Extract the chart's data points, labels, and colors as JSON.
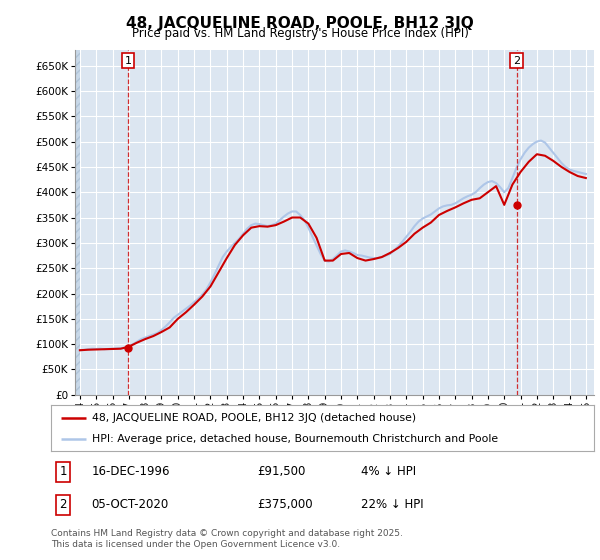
{
  "title": "48, JACQUELINE ROAD, POOLE, BH12 3JQ",
  "subtitle": "Price paid vs. HM Land Registry's House Price Index (HPI)",
  "legend_line1": "48, JACQUELINE ROAD, POOLE, BH12 3JQ (detached house)",
  "legend_line2": "HPI: Average price, detached house, Bournemouth Christchurch and Poole",
  "annotation1_date": "16-DEC-1996",
  "annotation1_price": "£91,500",
  "annotation1_hpi": "4% ↓ HPI",
  "annotation2_date": "05-OCT-2020",
  "annotation2_price": "£375,000",
  "annotation2_hpi": "22% ↓ HPI",
  "footer": "Contains HM Land Registry data © Crown copyright and database right 2025.\nThis data is licensed under the Open Government Licence v3.0.",
  "ylim": [
    0,
    680000
  ],
  "ytick_step": 50000,
  "background_color": "#ffffff",
  "plot_bg_color": "#dce6f1",
  "hatch_color": "#c8d8e8",
  "grid_color": "#ffffff",
  "hpi_color": "#aec6e8",
  "price_color": "#cc0000",
  "marker_color": "#cc0000",
  "hpi_linewidth": 1.5,
  "price_linewidth": 1.5,
  "sale1_year": 1996.96,
  "sale1_price": 91500,
  "sale2_year": 2020.76,
  "sale2_price": 375000,
  "hpi_years": [
    1994.0,
    1994.25,
    1994.5,
    1994.75,
    1995.0,
    1995.25,
    1995.5,
    1995.75,
    1996.0,
    1996.25,
    1996.5,
    1996.75,
    1997.0,
    1997.25,
    1997.5,
    1997.75,
    1998.0,
    1998.25,
    1998.5,
    1998.75,
    1999.0,
    1999.25,
    1999.5,
    1999.75,
    2000.0,
    2000.25,
    2000.5,
    2000.75,
    2001.0,
    2001.25,
    2001.5,
    2001.75,
    2002.0,
    2002.25,
    2002.5,
    2002.75,
    2003.0,
    2003.25,
    2003.5,
    2003.75,
    2004.0,
    2004.25,
    2004.5,
    2004.75,
    2005.0,
    2005.25,
    2005.5,
    2005.75,
    2006.0,
    2006.25,
    2006.5,
    2006.75,
    2007.0,
    2007.25,
    2007.5,
    2007.75,
    2008.0,
    2008.25,
    2008.5,
    2008.75,
    2009.0,
    2009.25,
    2009.5,
    2009.75,
    2010.0,
    2010.25,
    2010.5,
    2010.75,
    2011.0,
    2011.25,
    2011.5,
    2011.75,
    2012.0,
    2012.25,
    2012.5,
    2012.75,
    2013.0,
    2013.25,
    2013.5,
    2013.75,
    2014.0,
    2014.25,
    2014.5,
    2014.75,
    2015.0,
    2015.25,
    2015.5,
    2015.75,
    2016.0,
    2016.25,
    2016.5,
    2016.75,
    2017.0,
    2017.25,
    2017.5,
    2017.75,
    2018.0,
    2018.25,
    2018.5,
    2018.75,
    2019.0,
    2019.25,
    2019.5,
    2019.75,
    2020.0,
    2020.25,
    2020.5,
    2020.75,
    2021.0,
    2021.25,
    2021.5,
    2021.75,
    2022.0,
    2022.25,
    2022.5,
    2022.75,
    2023.0,
    2023.25,
    2023.5,
    2023.75,
    2024.0,
    2024.25,
    2024.5,
    2024.75,
    2025.0
  ],
  "hpi_values": [
    88000,
    88500,
    90000,
    91000,
    90500,
    91000,
    90000,
    90500,
    91000,
    91500,
    92000,
    93000,
    96000,
    100000,
    105000,
    110000,
    113000,
    116000,
    119000,
    122000,
    128000,
    135000,
    143000,
    152000,
    158000,
    164000,
    170000,
    176000,
    183000,
    190000,
    198000,
    208000,
    222000,
    238000,
    255000,
    272000,
    283000,
    292000,
    300000,
    308000,
    318000,
    328000,
    335000,
    338000,
    337000,
    335000,
    333000,
    335000,
    338000,
    345000,
    352000,
    358000,
    362000,
    362000,
    355000,
    345000,
    330000,
    312000,
    295000,
    278000,
    265000,
    263000,
    268000,
    275000,
    283000,
    285000,
    283000,
    280000,
    276000,
    275000,
    273000,
    271000,
    270000,
    270000,
    272000,
    275000,
    278000,
    285000,
    293000,
    302000,
    312000,
    322000,
    333000,
    342000,
    348000,
    352000,
    356000,
    362000,
    368000,
    372000,
    374000,
    375000,
    378000,
    383000,
    388000,
    392000,
    395000,
    400000,
    408000,
    415000,
    420000,
    422000,
    418000,
    410000,
    400000,
    408000,
    428000,
    448000,
    465000,
    478000,
    488000,
    495000,
    500000,
    502000,
    498000,
    488000,
    478000,
    468000,
    458000,
    450000,
    445000,
    442000,
    440000,
    438000,
    436000
  ],
  "price_years": [
    1994.0,
    1994.5,
    1995.0,
    1995.5,
    1996.0,
    1996.5,
    1997.0,
    1997.5,
    1998.0,
    1998.5,
    1999.0,
    1999.5,
    2000.0,
    2000.5,
    2001.0,
    2001.5,
    2002.0,
    2002.5,
    2003.0,
    2003.5,
    2004.0,
    2004.5,
    2005.0,
    2005.5,
    2006.0,
    2006.5,
    2007.0,
    2007.5,
    2008.0,
    2008.5,
    2009.0,
    2009.5,
    2010.0,
    2010.5,
    2011.0,
    2011.5,
    2012.0,
    2012.5,
    2013.0,
    2013.5,
    2014.0,
    2014.5,
    2015.0,
    2015.5,
    2016.0,
    2016.5,
    2017.0,
    2017.5,
    2018.0,
    2018.5,
    2019.0,
    2019.5,
    2020.0,
    2020.5,
    2021.0,
    2021.5,
    2022.0,
    2022.5,
    2023.0,
    2023.5,
    2024.0,
    2024.5,
    2025.0
  ],
  "price_values": [
    88000,
    89000,
    89500,
    90000,
    90500,
    91000,
    95000,
    103000,
    110000,
    116000,
    124000,
    133000,
    150000,
    163000,
    178000,
    194000,
    214000,
    242000,
    270000,
    296000,
    315000,
    330000,
    333000,
    332000,
    335000,
    342000,
    350000,
    350000,
    338000,
    310000,
    265000,
    265000,
    278000,
    280000,
    270000,
    265000,
    268000,
    272000,
    280000,
    290000,
    302000,
    318000,
    330000,
    340000,
    355000,
    363000,
    370000,
    378000,
    385000,
    388000,
    400000,
    412000,
    375000,
    415000,
    440000,
    460000,
    475000,
    472000,
    462000,
    450000,
    440000,
    432000,
    428000
  ],
  "xlim_start": 1993.7,
  "xlim_end": 2025.5,
  "hatch_end": 1994.0
}
